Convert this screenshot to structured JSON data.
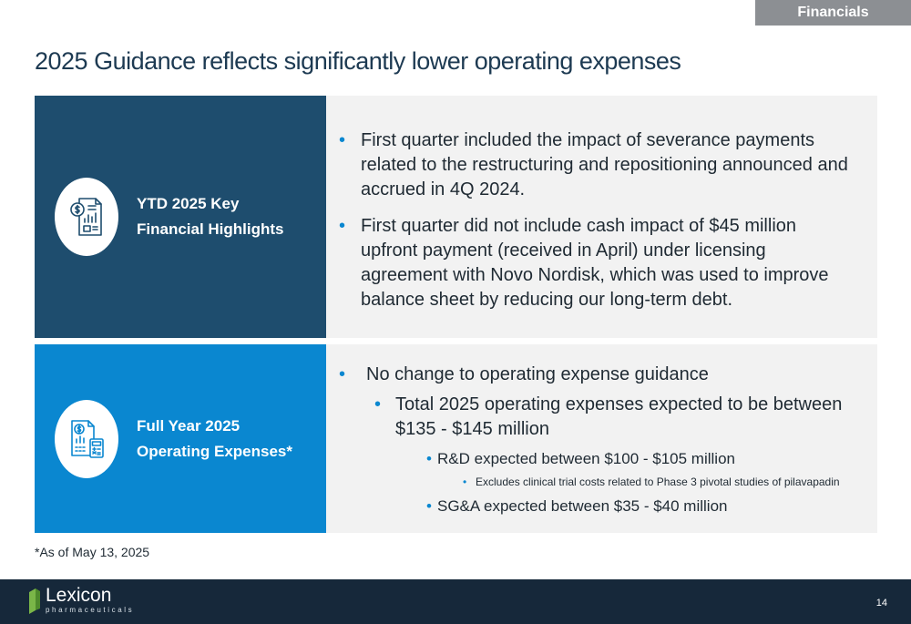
{
  "header": {
    "section_tab": "Financials",
    "title": "2025 Guidance reflects significantly lower operating expenses"
  },
  "ytd_panel": {
    "label_line1": "YTD 2025 Key",
    "label_line2": "Financial Highlights",
    "icon": "financial-report-icon",
    "bullets": [
      "First quarter included the impact of severance payments related to the restructuring and repositioning announced and accrued in 4Q 2024.",
      "First quarter did not include cash impact of $45 million upfront payment (received in April) under licensing agreement with Novo Nordisk, which was used to improve balance sheet by reducing our long-term debt."
    ]
  },
  "fy_panel": {
    "label_line1": "Full Year 2025",
    "label_line2": "Operating Expenses*",
    "icon": "expense-calculator-icon",
    "bullet_l1": "No change to operating expense guidance",
    "bullet_l2": "Total 2025 operating expenses expected to be between $135 - $145 million",
    "bullet_rd": "R&D expected between $100 - $105 million",
    "bullet_rd_sub": "Excludes clinical trial costs related to Phase 3 pivotal studies of pilavapadin",
    "bullet_sga": "SG&A expected between $35 - $40 million"
  },
  "footnote": "*As of May 13, 2025",
  "footer": {
    "logo_name": "Lexicon",
    "logo_sub": "pharmaceuticals",
    "page_number": "14"
  },
  "colors": {
    "dark_panel": "#1e4d6e",
    "blue_panel": "#0a87d0",
    "title": "#1d3a52",
    "footer": "#16283a",
    "logo_green": "#7ab648"
  }
}
